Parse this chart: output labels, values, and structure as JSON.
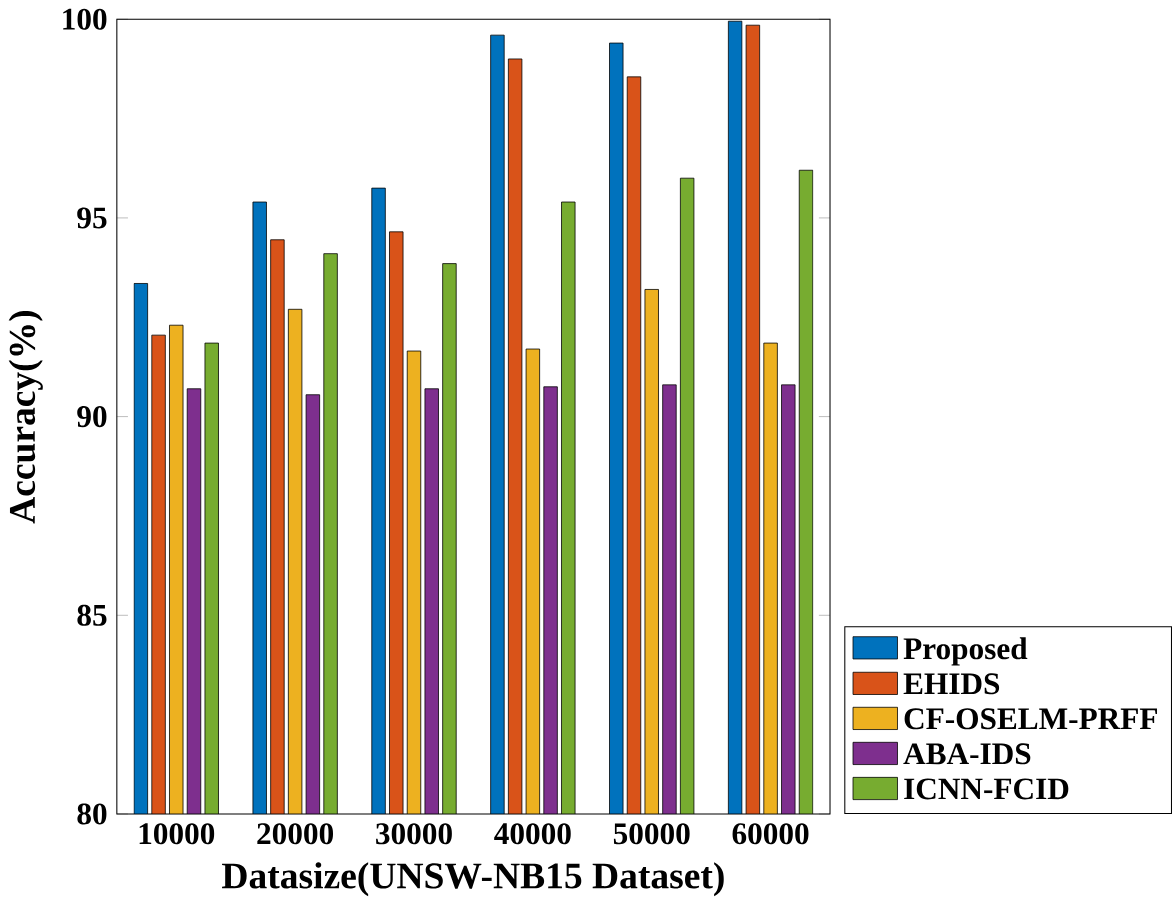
{
  "chart_data": {
    "type": "bar",
    "xlabel": "Datasize(UNSW-NB15 Dataset)",
    "ylabel": "Accuracy(%)",
    "categories": [
      "10000",
      "20000",
      "30000",
      "40000",
      "50000",
      "60000"
    ],
    "series": [
      {
        "name": "Proposed",
        "color": "#0072bd",
        "values": [
          93.35,
          95.4,
          95.75,
          99.6,
          99.4,
          99.95
        ]
      },
      {
        "name": "EHIDS",
        "color": "#d95319",
        "values": [
          92.05,
          94.45,
          94.65,
          99.0,
          98.55,
          99.85
        ]
      },
      {
        "name": "CF-OSELM-PRFF",
        "color": "#edb120",
        "values": [
          92.3,
          92.7,
          91.65,
          91.7,
          93.2,
          91.85
        ]
      },
      {
        "name": "ABA-IDS",
        "color": "#7e2f8e",
        "values": [
          90.7,
          90.55,
          90.7,
          90.75,
          90.8,
          90.8
        ]
      },
      {
        "name": "ICNN-FCID",
        "color": "#77ac30",
        "values": [
          91.85,
          94.1,
          93.85,
          95.4,
          96.0,
          96.2
        ]
      }
    ],
    "ylim": [
      80,
      100
    ],
    "yticks": [
      80,
      85,
      90,
      95,
      100
    ],
    "legend": "bottom right"
  }
}
